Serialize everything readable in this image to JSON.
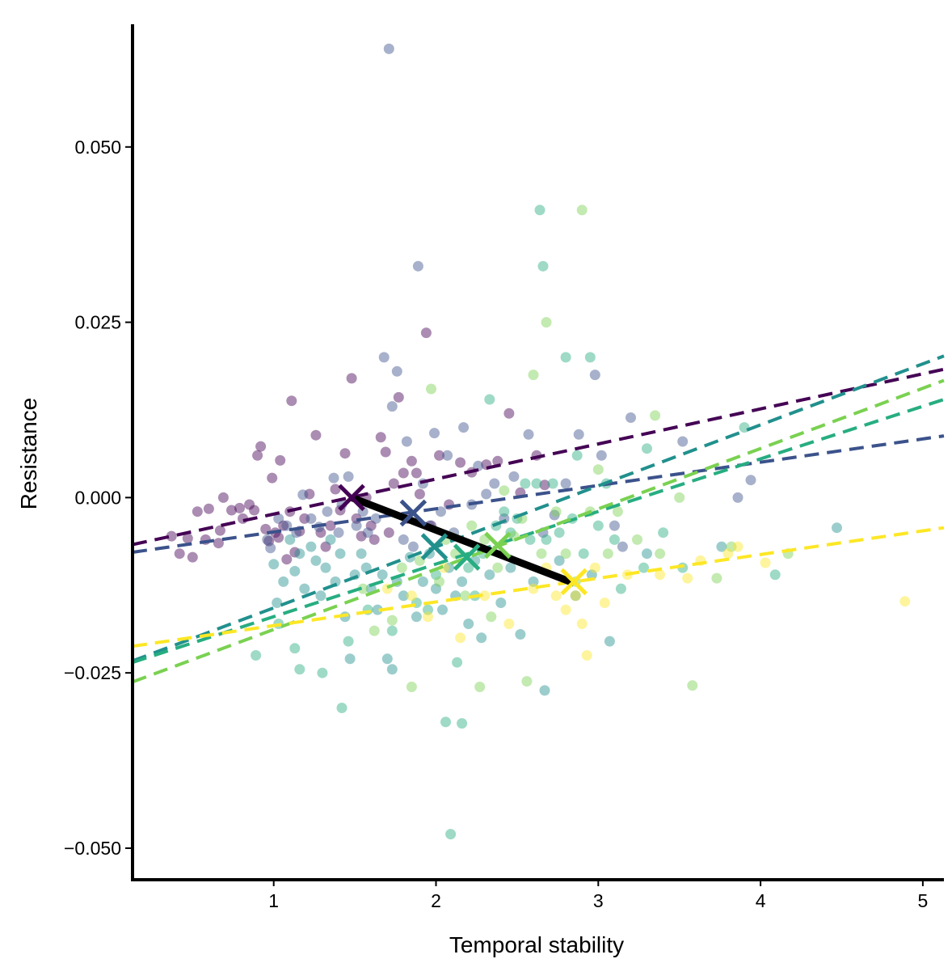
{
  "chart_data": {
    "type": "scatter",
    "title": "",
    "xlabel": "Temporal stability",
    "ylabel": "Resistance",
    "xlim": [
      0.13,
      5.13
    ],
    "ylim": [
      -0.0545,
      0.0675
    ],
    "x_ticks": [
      1,
      2,
      3,
      4,
      5
    ],
    "x_tick_labels": [
      "1",
      "2",
      "3",
      "4",
      "5"
    ],
    "y_ticks": [
      -0.05,
      -0.025,
      0,
      0.025,
      0.05
    ],
    "y_tick_labels": [
      "−0.050",
      "−0.025",
      "0.000",
      "0.025",
      "0.050"
    ],
    "grid": false,
    "legend": "none",
    "point_opacity": 0.45,
    "series": [
      {
        "color": "#440154",
        "trend": {
          "x": [
            0.13,
            5.13
          ],
          "y": [
            -0.0067,
            0.0183
          ]
        },
        "centroid": [
          1.48,
          0.0
        ],
        "points": [
          [
            0.37,
            -0.0055
          ],
          [
            0.42,
            -0.008
          ],
          [
            0.47,
            -0.0058
          ],
          [
            0.5,
            -0.0085
          ],
          [
            0.53,
            -0.002
          ],
          [
            0.58,
            -0.006
          ],
          [
            0.6,
            -0.0016
          ],
          [
            0.66,
            -0.0065
          ],
          [
            0.67,
            -0.0047
          ],
          [
            0.69,
            0.0
          ],
          [
            0.74,
            -0.0018
          ],
          [
            0.79,
            -0.0015
          ],
          [
            0.81,
            -0.003
          ],
          [
            0.85,
            -0.001
          ],
          [
            0.88,
            -0.0018
          ],
          [
            0.9,
            0.006
          ],
          [
            0.92,
            0.0073
          ],
          [
            0.95,
            -0.0045
          ],
          [
            0.97,
            -0.0062
          ],
          [
            0.99,
            0.0028
          ],
          [
            1.01,
            -0.005
          ],
          [
            1.03,
            -0.0057
          ],
          [
            1.04,
            0.0053
          ],
          [
            1.06,
            -0.004
          ],
          [
            1.08,
            -0.0088
          ],
          [
            1.1,
            -0.002
          ],
          [
            1.11,
            0.0138
          ],
          [
            1.13,
            -0.0078
          ],
          [
            1.16,
            -0.0048
          ],
          [
            1.19,
            -0.003
          ],
          [
            1.22,
            0.0005
          ],
          [
            1.26,
            0.0089
          ],
          [
            1.29,
            -0.005
          ],
          [
            1.32,
            -0.007
          ],
          [
            1.35,
            -0.004
          ],
          [
            1.38,
            0.0012
          ],
          [
            1.41,
            -0.0018
          ],
          [
            1.44,
            0.0063
          ],
          [
            1.48,
            0.017
          ],
          [
            1.51,
            -0.003
          ],
          [
            1.54,
            -0.0055
          ],
          [
            1.57,
            0.0
          ],
          [
            1.6,
            -0.004
          ],
          [
            1.62,
            -0.006
          ],
          [
            1.66,
            0.0086
          ],
          [
            1.69,
            0.0065
          ],
          [
            1.71,
            -0.005
          ],
          [
            1.74,
            0.002
          ],
          [
            1.77,
            0.0143
          ],
          [
            1.8,
            0.0035
          ],
          [
            1.82,
            -0.003
          ],
          [
            1.85,
            0.0052
          ],
          [
            1.88,
            0.0035
          ],
          [
            1.9,
            0.0005
          ],
          [
            1.94,
            0.0235
          ],
          [
            1.97,
            -0.004
          ],
          [
            2.02,
            0.006
          ],
          [
            2.08,
            -0.001
          ],
          [
            2.15,
            0.005
          ],
          [
            2.22,
            0.0036
          ],
          [
            2.31,
            0.0047
          ],
          [
            2.38,
            0.0052
          ],
          [
            2.45,
            0.012
          ],
          [
            2.52,
            0.0007
          ],
          [
            2.62,
            0.006
          ],
          [
            2.67,
            0.0018
          ]
        ]
      },
      {
        "color": "#3b528b",
        "trend": {
          "x": [
            0.13,
            5.13
          ],
          "y": [
            -0.0078,
            0.0088
          ]
        },
        "centroid": [
          1.86,
          -0.0022
        ],
        "points": [
          [
            0.96,
            -0.006
          ],
          [
            0.98,
            -0.0072
          ],
          [
            1.03,
            -0.003
          ],
          [
            1.08,
            -0.004
          ],
          [
            1.14,
            -0.005
          ],
          [
            1.18,
            0.0004
          ],
          [
            1.23,
            -0.003
          ],
          [
            1.28,
            -0.0042
          ],
          [
            1.33,
            -0.002
          ],
          [
            1.37,
            0.0028
          ],
          [
            1.4,
            -0.005
          ],
          [
            1.42,
            -0.001
          ],
          [
            1.46,
            0.003
          ],
          [
            1.51,
            -0.004
          ],
          [
            1.55,
            -0.002
          ],
          [
            1.58,
            -0.005
          ],
          [
            1.63,
            -0.003
          ],
          [
            1.68,
            0.02
          ],
          [
            1.71,
            0.064
          ],
          [
            1.73,
            0.013
          ],
          [
            1.76,
            0.018
          ],
          [
            1.8,
            -0.006
          ],
          [
            1.82,
            0.008
          ],
          [
            1.86,
            -0.007
          ],
          [
            1.89,
            0.033
          ],
          [
            1.92,
            0.002
          ],
          [
            1.96,
            -0.004
          ],
          [
            1.99,
            0.0092
          ],
          [
            2.03,
            -0.002
          ],
          [
            2.07,
            0.006
          ],
          [
            2.11,
            -0.005
          ],
          [
            2.17,
            0.01
          ],
          [
            2.22,
            -0.001
          ],
          [
            2.26,
            0.0045
          ],
          [
            2.31,
            0.0005
          ],
          [
            2.36,
            0.002
          ],
          [
            2.42,
            -0.003
          ],
          [
            2.48,
            0.003
          ],
          [
            2.57,
            0.009
          ],
          [
            2.66,
            -0.005
          ],
          [
            2.73,
            -0.0025
          ],
          [
            2.8,
            0.002
          ],
          [
            2.88,
            0.009
          ],
          [
            2.98,
            0.0175
          ],
          [
            3.02,
            0.006
          ],
          [
            3.1,
            -0.004
          ],
          [
            3.15,
            -0.007
          ],
          [
            3.2,
            0.0114
          ],
          [
            3.52,
            0.008
          ],
          [
            3.86,
            0.0
          ],
          [
            3.94,
            0.0025
          ]
        ]
      },
      {
        "color": "#21908d",
        "trend": {
          "x": [
            0.13,
            5.13
          ],
          "y": [
            -0.0233,
            0.0202
          ]
        },
        "centroid": [
          1.99,
          -0.007
        ],
        "points": [
          [
            1.0,
            -0.0095
          ],
          [
            1.02,
            -0.015
          ],
          [
            1.06,
            -0.012
          ],
          [
            1.1,
            -0.006
          ],
          [
            1.13,
            -0.0105
          ],
          [
            1.16,
            -0.008
          ],
          [
            1.19,
            -0.013
          ],
          [
            1.23,
            -0.007
          ],
          [
            1.26,
            -0.009
          ],
          [
            1.29,
            -0.014
          ],
          [
            1.32,
            -0.01
          ],
          [
            1.35,
            -0.006
          ],
          [
            1.38,
            -0.012
          ],
          [
            1.41,
            -0.008
          ],
          [
            1.44,
            -0.017
          ],
          [
            1.47,
            -0.023
          ],
          [
            1.5,
            -0.011
          ],
          [
            1.54,
            -0.008
          ],
          [
            1.57,
            -0.01
          ],
          [
            1.6,
            -0.013
          ],
          [
            1.64,
            -0.016
          ],
          [
            1.67,
            -0.011
          ],
          [
            1.7,
            -0.023
          ],
          [
            1.73,
            -0.0245
          ],
          [
            1.76,
            -0.012
          ],
          [
            1.8,
            -0.014
          ],
          [
            1.84,
            -0.0085
          ],
          [
            1.88,
            -0.017
          ],
          [
            1.92,
            -0.012
          ],
          [
            1.96,
            -0.008
          ],
          [
            2.0,
            -0.013
          ],
          [
            2.04,
            -0.016
          ],
          [
            2.08,
            -0.01
          ],
          [
            2.12,
            -0.014
          ],
          [
            2.16,
            -0.012
          ],
          [
            2.2,
            -0.018
          ],
          [
            2.24,
            -0.009
          ],
          [
            2.28,
            -0.02
          ],
          [
            2.33,
            -0.011
          ],
          [
            2.4,
            -0.015
          ],
          [
            2.46,
            -0.01
          ],
          [
            2.52,
            -0.0195
          ],
          [
            2.6,
            -0.012
          ],
          [
            2.67,
            -0.0275
          ],
          [
            2.76,
            -0.009
          ],
          [
            2.86,
            -0.014
          ],
          [
            2.96,
            -0.011
          ],
          [
            3.07,
            -0.0205
          ],
          [
            3.3,
            -0.008
          ],
          [
            3.76,
            -0.007
          ],
          [
            4.47,
            -0.0043
          ]
        ]
      },
      {
        "color": "#27ad81",
        "trend": {
          "x": [
            0.13,
            5.13
          ],
          "y": [
            -0.0235,
            0.014
          ]
        },
        "centroid": [
          2.19,
          -0.0085
        ],
        "points": [
          [
            0.89,
            -0.0225
          ],
          [
            1.03,
            -0.018
          ],
          [
            1.13,
            -0.0215
          ],
          [
            1.16,
            -0.0245
          ],
          [
            1.3,
            -0.025
          ],
          [
            1.42,
            -0.03
          ],
          [
            1.46,
            -0.0205
          ],
          [
            1.58,
            -0.016
          ],
          [
            1.73,
            -0.019
          ],
          [
            1.88,
            -0.015
          ],
          [
            1.95,
            -0.016
          ],
          [
            2.0,
            -0.011
          ],
          [
            2.06,
            -0.032
          ],
          [
            2.09,
            -0.048
          ],
          [
            2.13,
            -0.0235
          ],
          [
            2.16,
            -0.0322
          ],
          [
            2.2,
            -0.01
          ],
          [
            2.24,
            -0.014
          ],
          [
            2.29,
            -0.008
          ],
          [
            2.33,
            0.014
          ],
          [
            2.37,
            -0.004
          ],
          [
            2.42,
            -0.002
          ],
          [
            2.46,
            -0.005
          ],
          [
            2.5,
            -0.003
          ],
          [
            2.55,
            0.002
          ],
          [
            2.58,
            -0.006
          ],
          [
            2.62,
            0.002
          ],
          [
            2.64,
            0.041
          ],
          [
            2.66,
            0.033
          ],
          [
            2.68,
            -0.006
          ],
          [
            2.72,
            0.002
          ],
          [
            2.76,
            -0.005
          ],
          [
            2.8,
            0.02
          ],
          [
            2.84,
            -0.003
          ],
          [
            2.87,
            0.006
          ],
          [
            2.91,
            -0.008
          ],
          [
            2.95,
            0.02
          ],
          [
            3.0,
            -0.004
          ],
          [
            3.05,
            0.002
          ],
          [
            3.1,
            -0.006
          ],
          [
            3.14,
            -0.013
          ],
          [
            3.28,
            -0.01
          ],
          [
            3.3,
            0.007
          ],
          [
            3.4,
            -0.005
          ],
          [
            3.52,
            -0.01
          ],
          [
            3.9,
            0.01
          ],
          [
            4.09,
            -0.011
          ]
        ]
      },
      {
        "color": "#7ad151",
        "trend": {
          "x": [
            0.13,
            5.13
          ],
          "y": [
            -0.0263,
            0.0167
          ]
        },
        "centroid": [
          2.38,
          -0.0068
        ],
        "points": [
          [
            1.55,
            -0.013
          ],
          [
            1.62,
            -0.019
          ],
          [
            1.73,
            -0.0175
          ],
          [
            1.79,
            -0.01
          ],
          [
            1.85,
            -0.027
          ],
          [
            1.9,
            -0.009
          ],
          [
            1.97,
            0.0155
          ],
          [
            2.02,
            -0.012
          ],
          [
            2.06,
            -0.006
          ],
          [
            2.12,
            -0.008
          ],
          [
            2.18,
            -0.014
          ],
          [
            2.22,
            -0.004
          ],
          [
            2.27,
            -0.027
          ],
          [
            2.3,
            -0.006
          ],
          [
            2.34,
            -0.017
          ],
          [
            2.38,
            -0.01
          ],
          [
            2.42,
            0.001
          ],
          [
            2.48,
            -0.0055
          ],
          [
            2.53,
            -0.003
          ],
          [
            2.56,
            -0.0262
          ],
          [
            2.6,
            0.0175
          ],
          [
            2.65,
            -0.008
          ],
          [
            2.68,
            0.025
          ],
          [
            2.74,
            -0.002
          ],
          [
            2.8,
            -0.008
          ],
          [
            2.86,
            -0.012
          ],
          [
            2.9,
            0.041
          ],
          [
            2.95,
            -0.002
          ],
          [
            3.0,
            0.004
          ],
          [
            3.06,
            -0.008
          ],
          [
            3.12,
            -0.002
          ],
          [
            3.24,
            -0.006
          ],
          [
            3.35,
            0.0117
          ],
          [
            3.38,
            -0.008
          ],
          [
            3.5,
            0.0
          ],
          [
            3.58,
            -0.0268
          ],
          [
            3.73,
            -0.0115
          ],
          [
            3.82,
            -0.007
          ],
          [
            4.17,
            -0.008
          ]
        ]
      },
      {
        "color": "#fde725",
        "trend": {
          "x": [
            0.13,
            5.13
          ],
          "y": [
            -0.0212,
            -0.0043
          ]
        },
        "centroid": [
          2.85,
          -0.012
        ],
        "points": [
          [
            1.7,
            -0.013
          ],
          [
            1.85,
            -0.014
          ],
          [
            1.95,
            -0.017
          ],
          [
            2.05,
            -0.01
          ],
          [
            2.15,
            -0.02
          ],
          [
            2.3,
            -0.014
          ],
          [
            2.45,
            -0.018
          ],
          [
            2.6,
            -0.013
          ],
          [
            2.68,
            -0.01
          ],
          [
            2.74,
            -0.014
          ],
          [
            2.8,
            -0.016
          ],
          [
            2.86,
            -0.014
          ],
          [
            2.9,
            -0.018
          ],
          [
            2.93,
            -0.0225
          ],
          [
            2.98,
            -0.01
          ],
          [
            3.04,
            -0.015
          ],
          [
            3.18,
            -0.011
          ],
          [
            3.38,
            -0.011
          ],
          [
            3.55,
            -0.0115
          ],
          [
            3.63,
            -0.009
          ],
          [
            3.8,
            -0.008
          ],
          [
            3.86,
            -0.007
          ],
          [
            4.03,
            -0.0093
          ],
          [
            4.89,
            -0.0148
          ]
        ]
      }
    ],
    "overall_trend": {
      "color": "#000000",
      "x": [
        1.48,
        2.85
      ],
      "y": [
        0.0,
        -0.0122
      ]
    }
  }
}
